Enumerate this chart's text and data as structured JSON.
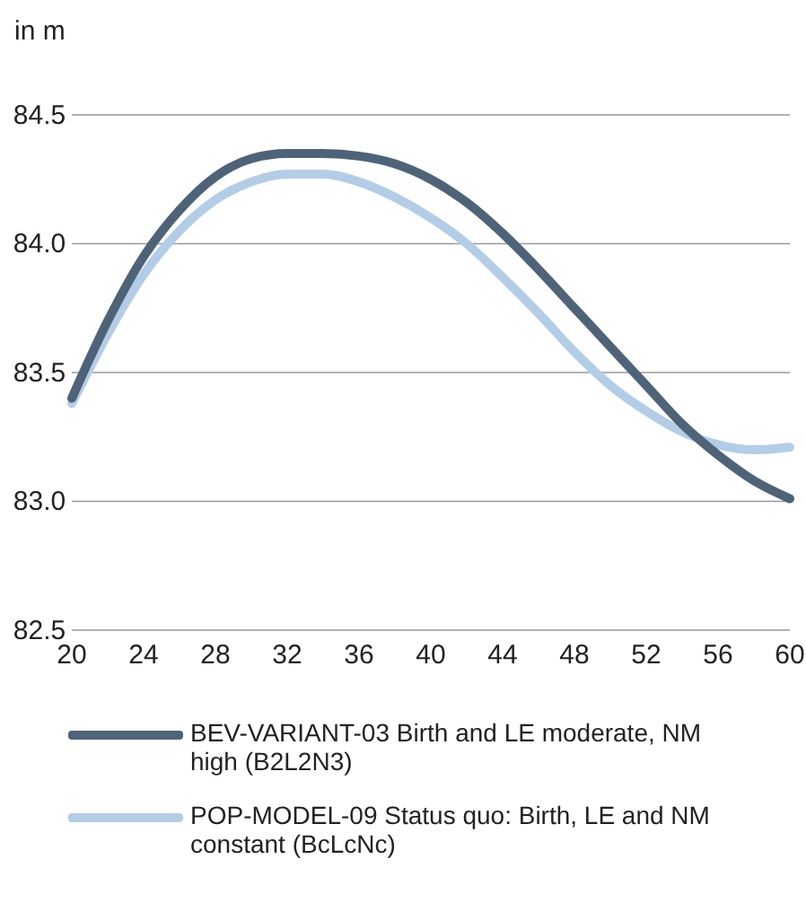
{
  "chart_data": {
    "type": "line",
    "ylabel": "in m",
    "x": [
      20,
      22,
      24,
      26,
      28,
      30,
      32,
      34,
      36,
      38,
      40,
      42,
      44,
      46,
      48,
      50,
      52,
      54,
      56,
      58,
      60
    ],
    "series": [
      {
        "name": "BEV-VARIANT-03 Birth and LE moderate, NM high (B2L2N3)",
        "color": "#4f6378",
        "values": [
          83.4,
          83.7,
          83.95,
          84.13,
          84.26,
          84.33,
          84.35,
          84.35,
          84.34,
          84.31,
          84.25,
          84.16,
          84.04,
          83.9,
          83.75,
          83.6,
          83.45,
          83.3,
          83.18,
          83.08,
          83.01
        ]
      },
      {
        "name": "POP-MODEL-09 Status quo: Birth, LE and NM constant (BcLcNc)",
        "color": "#b4cde6",
        "values": [
          83.38,
          83.65,
          83.88,
          84.05,
          84.17,
          84.24,
          84.27,
          84.27,
          84.24,
          84.18,
          84.1,
          84.0,
          83.87,
          83.73,
          83.58,
          83.45,
          83.35,
          83.27,
          83.22,
          83.2,
          83.21
        ]
      }
    ],
    "xlim": [
      20,
      60
    ],
    "xticks": [
      20,
      24,
      28,
      32,
      36,
      40,
      44,
      48,
      52,
      56,
      60
    ],
    "ylim": [
      82.5,
      84.5
    ],
    "yticks": [
      {
        "value": 82.5,
        "label": "82.5"
      },
      {
        "value": 83,
        "label": "83.0"
      },
      {
        "value": 83.5,
        "label": "83.5"
      },
      {
        "value": 84,
        "label": "84.0"
      },
      {
        "value": 84.5,
        "label": "84.5"
      }
    ],
    "grid": "y",
    "legend": "bottom",
    "marker": "none",
    "line_style": "solid"
  }
}
